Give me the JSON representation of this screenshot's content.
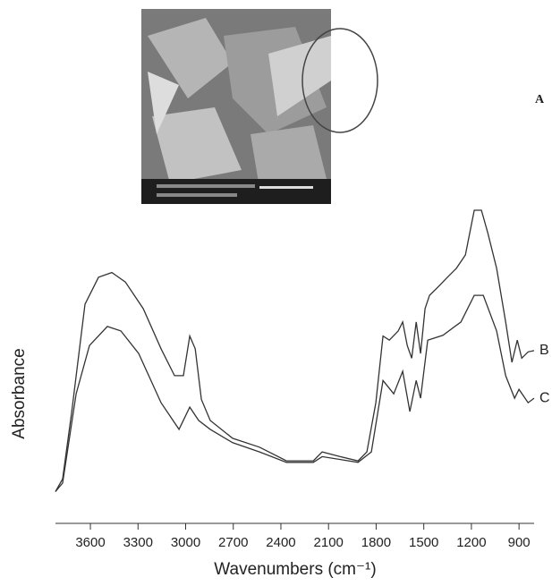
{
  "panel_label": "A",
  "chart_data": {
    "type": "line",
    "x_label": "Wavenumbers (cm⁻¹)",
    "y_label": "Absorbance",
    "xlim": [
      3820,
      805
    ],
    "ylim": [
      0,
      100
    ],
    "xticks": [
      3600,
      3300,
      3000,
      2700,
      2400,
      2100,
      1800,
      1500,
      1200,
      900
    ],
    "series": [
      {
        "name": "B",
        "color": "#333333",
        "x": [
          3820,
          3775,
          3718,
          3634,
          3549,
          3465,
          3380,
          3267,
          3155,
          3070,
          3014,
          2974,
          2940,
          2901,
          2845,
          2704,
          2535,
          2365,
          2196,
          2140,
          2027,
          1914,
          1858,
          1802,
          1757,
          1717,
          1661,
          1633,
          1604,
          1576,
          1548,
          1520,
          1492,
          1464,
          1407,
          1351,
          1295,
          1238,
          1182,
          1137,
          1097,
          1041,
          984,
          945,
          911,
          883,
          843,
          805
        ],
        "values": [
          10,
          14,
          35,
          69,
          77.5,
          79,
          76,
          67.6,
          55,
          46.5,
          46.5,
          59,
          55,
          39,
          32.4,
          26.8,
          24,
          19.7,
          19.7,
          22.5,
          21,
          19.7,
          22.5,
          38,
          59,
          57.7,
          60.6,
          63.4,
          56,
          52,
          63.4,
          53.5,
          67.6,
          71.8,
          74.6,
          77.5,
          80.3,
          84.5,
          98.6,
          98.6,
          91.5,
          80.3,
          63.4,
          50.7,
          57.7,
          52,
          54,
          54.4
        ]
      },
      {
        "name": "C",
        "color": "#333333",
        "x": [
          3820,
          3775,
          3690,
          3606,
          3493,
          3408,
          3296,
          3155,
          3042,
          2974,
          2918,
          2845,
          2704,
          2535,
          2365,
          2196,
          2140,
          1914,
          1830,
          1757,
          1689,
          1633,
          1588,
          1548,
          1520,
          1475,
          1379,
          1266,
          1182,
          1125,
          1041,
          984,
          928,
          900,
          843,
          805
        ],
        "values": [
          10,
          12.7,
          40.8,
          56,
          62,
          60.6,
          53.5,
          38,
          29.6,
          36.6,
          32.4,
          29.6,
          25.4,
          22.5,
          19.2,
          19.2,
          21,
          19.2,
          22.5,
          45,
          40.8,
          47.9,
          35.2,
          45,
          39.4,
          57.7,
          59.2,
          63.4,
          71.8,
          71.8,
          60.6,
          46.5,
          39.4,
          42.2,
          38,
          39.4
        ]
      }
    ]
  }
}
